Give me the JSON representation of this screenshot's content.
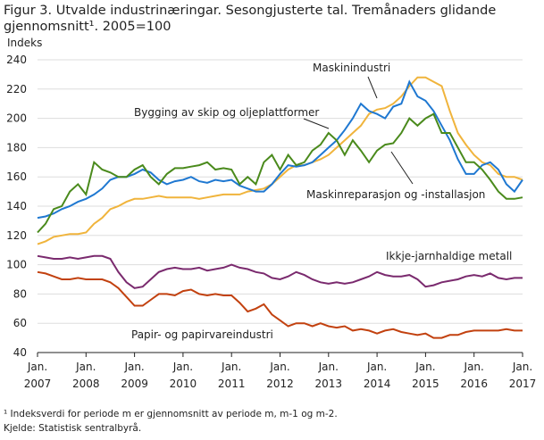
{
  "chart_data": {
    "type": "line",
    "title": "Figur 3. Utvalde industrinæringar. Sesongjusterte tal. Tremånaders glidande gjennomsnitt¹. 2005=100",
    "y_label": "Indeks",
    "footnote": "¹ Indeksverdi for periode m er gjennomsnitt av periode m, m-1 og m-2.",
    "source": "Kjelde: Statistisk sentralbyrå.",
    "x": [
      "2007-01",
      "2007-03",
      "2007-05",
      "2007-07",
      "2007-09",
      "2007-11",
      "2008-01",
      "2008-03",
      "2008-05",
      "2008-07",
      "2008-09",
      "2008-11",
      "2009-01",
      "2009-03",
      "2009-05",
      "2009-07",
      "2009-09",
      "2009-11",
      "2010-01",
      "2010-03",
      "2010-05",
      "2010-07",
      "2010-09",
      "2010-11",
      "2011-01",
      "2011-03",
      "2011-05",
      "2011-07",
      "2011-09",
      "2011-11",
      "2012-01",
      "2012-03",
      "2012-05",
      "2012-07",
      "2012-09",
      "2012-11",
      "2013-01",
      "2013-03",
      "2013-05",
      "2013-07",
      "2013-09",
      "2013-11",
      "2014-01",
      "2014-03",
      "2014-05",
      "2014-07",
      "2014-09",
      "2014-11",
      "2015-01",
      "2015-03",
      "2015-05",
      "2015-07",
      "2015-09",
      "2015-11",
      "2016-01",
      "2016-03",
      "2016-05",
      "2016-07",
      "2016-09",
      "2016-11",
      "2017-01"
    ],
    "xlim": [
      "2007-01",
      "2017-01"
    ],
    "xticks": [
      {
        "value": "2007-01",
        "label": "Jan. 2007"
      },
      {
        "value": "2008-01",
        "label": "Jan. 2008"
      },
      {
        "value": "2009-01",
        "label": "Jan. 2009"
      },
      {
        "value": "2010-01",
        "label": "Jan. 2010"
      },
      {
        "value": "2011-01",
        "label": "Jan. 2011"
      },
      {
        "value": "2012-01",
        "label": "Jan. 2012"
      },
      {
        "value": "2013-01",
        "label": "Jan. 2013"
      },
      {
        "value": "2014-01",
        "label": "Jan. 2014"
      },
      {
        "value": "2015-01",
        "label": "Jan. 2015"
      },
      {
        "value": "2016-01",
        "label": "Jan. 2016"
      },
      {
        "value": "2017-01",
        "label": "Jan. 2017"
      }
    ],
    "ylim": [
      40,
      240
    ],
    "yticks": [
      40,
      60,
      80,
      100,
      120,
      140,
      160,
      180,
      200,
      220,
      240
    ],
    "grid": true,
    "series": [
      {
        "name": "Maskinindustri",
        "color": "#f0b43c",
        "values": [
          114,
          116,
          119,
          120,
          121,
          121,
          122,
          128,
          132,
          138,
          140,
          143,
          145,
          145,
          146,
          147,
          146,
          146,
          146,
          146,
          145,
          146,
          147,
          148,
          148,
          148,
          150,
          151,
          152,
          155,
          160,
          165,
          168,
          168,
          170,
          172,
          175,
          180,
          185,
          190,
          195,
          203,
          206,
          207,
          210,
          215,
          222,
          228,
          228,
          225,
          222,
          205,
          190,
          182,
          175,
          170,
          168,
          162,
          160,
          160,
          158
        ]
      },
      {
        "name": "Bygging av skip og oljeplattformer",
        "color": "#1f78d1",
        "values": [
          132,
          133,
          135,
          138,
          140,
          143,
          145,
          148,
          152,
          158,
          160,
          160,
          162,
          165,
          163,
          158,
          155,
          157,
          158,
          160,
          157,
          156,
          158,
          157,
          158,
          154,
          152,
          150,
          150,
          155,
          162,
          168,
          167,
          168,
          170,
          175,
          180,
          185,
          192,
          200,
          210,
          205,
          203,
          200,
          208,
          210,
          225,
          215,
          212,
          205,
          195,
          185,
          172,
          162,
          162,
          168,
          170,
          165,
          155,
          150,
          158
        ]
      },
      {
        "name": "Maskinreparasjon  og -installasjon",
        "color": "#4a8a1c",
        "values": [
          122,
          128,
          138,
          140,
          150,
          155,
          148,
          170,
          165,
          163,
          160,
          160,
          165,
          168,
          160,
          155,
          162,
          166,
          166,
          167,
          168,
          170,
          165,
          166,
          165,
          155,
          160,
          155,
          170,
          175,
          165,
          175,
          168,
          170,
          178,
          182,
          190,
          185,
          175,
          185,
          178,
          170,
          178,
          182,
          183,
          190,
          200,
          195,
          200,
          203,
          190,
          190,
          180,
          170,
          170,
          165,
          158,
          150,
          145,
          145,
          146
        ]
      },
      {
        "name": "Ikkje-jarnhaldige  metall",
        "color": "#7a2a6e",
        "values": [
          106,
          105,
          104,
          104,
          105,
          104,
          105,
          106,
          106,
          104,
          95,
          88,
          84,
          85,
          90,
          95,
          97,
          98,
          97,
          97,
          98,
          96,
          97,
          98,
          100,
          98,
          97,
          95,
          94,
          91,
          90,
          92,
          95,
          93,
          90,
          88,
          87,
          88,
          87,
          88,
          90,
          92,
          95,
          93,
          92,
          92,
          93,
          90,
          85,
          86,
          88,
          89,
          90,
          92,
          93,
          92,
          94,
          91,
          90,
          91,
          91
        ]
      },
      {
        "name": "Papir- og papirvareindustri",
        "color": "#c2410f",
        "values": [
          95,
          94,
          92,
          90,
          90,
          91,
          90,
          90,
          90,
          88,
          84,
          78,
          72,
          72,
          76,
          80,
          80,
          79,
          82,
          83,
          80,
          79,
          80,
          79,
          79,
          74,
          68,
          70,
          73,
          66,
          62,
          58,
          60,
          60,
          58,
          60,
          58,
          57,
          58,
          55,
          56,
          55,
          53,
          55,
          56,
          54,
          53,
          52,
          53,
          50,
          50,
          52,
          52,
          54,
          55,
          55,
          55,
          55,
          56,
          55,
          55
        ]
      }
    ]
  }
}
